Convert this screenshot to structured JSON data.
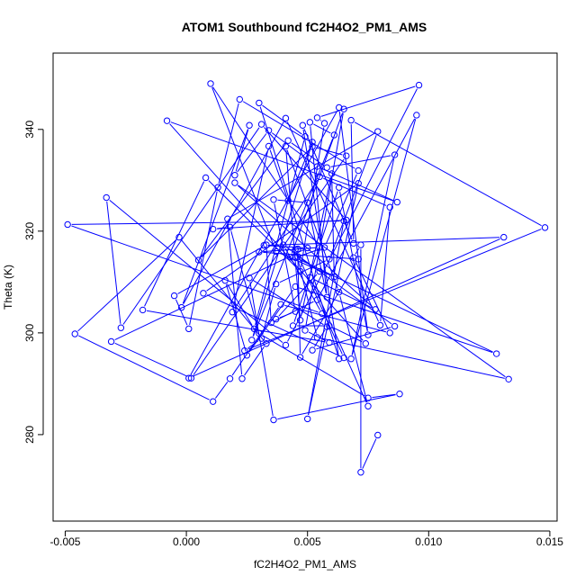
{
  "chart_data": {
    "type": "line",
    "title": "ATOM1 Southbound fC2H4O2_PM1_AMS",
    "xlabel": "fC2H4O2_PM1_AMS",
    "ylabel": "Theta (K)",
    "xlim": [
      -0.0055,
      0.0153
    ],
    "ylim": [
      263,
      355
    ],
    "xticks": [
      -0.005,
      0.0,
      0.005,
      0.01,
      0.015
    ],
    "xtick_labels": [
      "-0.005",
      "0.000",
      "0.005",
      "0.010",
      "0.015"
    ],
    "yticks": [
      280,
      300,
      320,
      340
    ],
    "ytick_labels": [
      "280",
      "300",
      "320",
      "340"
    ],
    "grid": false,
    "legend": "none",
    "markers": "open circles",
    "color": "#0000ff",
    "series": [
      {
        "x": [
          0.0079,
          0.0072,
          0.0072,
          0.0069,
          0.0084,
          0.0039,
          0.0018,
          0.0011,
          -0.0046,
          -0.0003,
          0.0033,
          0.0023,
          0.0017,
          0.0079,
          0.0059,
          0.0037,
          0.0031,
          0.0024,
          0.0148,
          0.0068,
          0.0069,
          0.0048,
          0.0063,
          0.003,
          0.0049,
          0.0028,
          0.0016,
          0.0025,
          0.0045,
          0.0128,
          0.0045,
          0.0057,
          0.0071,
          0.0022,
          0.0013,
          0.0001,
          -0.0005,
          0.0033,
          0.0035,
          0.0054,
          0.0095,
          0.0068,
          0.0086,
          0.0058,
          0.0042,
          0.0005,
          0.0052,
          0.0066,
          0.0002,
          -0.0031,
          0.005,
          0.0032,
          0.0131,
          0.0001,
          0.0063,
          0.0075,
          0.0063,
          0.0044,
          0.0059,
          0.0074,
          -0.0008,
          0.0087,
          0.0054,
          0.0034,
          0.002,
          0.0026,
          -0.0002,
          0.0041,
          0.008,
          0.0084,
          0.0055,
          0.0019,
          0.0034,
          0.0042,
          0.0052,
          0.0027,
          0.0061,
          0.0051,
          0.0058,
          0.005,
          0.0036,
          0.0045,
          0.0037,
          0.0055,
          0.0046,
          0.0047,
          0.0071,
          0.003,
          0.0055,
          0.001,
          0.0037,
          0.0061,
          0.006,
          0.0047,
          0.0041,
          0.0063,
          0.0075,
          0.0051,
          0.0078,
          0.002,
          0.0133,
          0.0054,
          0.0045,
          0.0065,
          0.0007,
          0.0071,
          0.005,
          0.0065,
          -0.0049,
          0.0056,
          0.004,
          0.0086,
          0.0052,
          0.0058,
          0.0026,
          0.0036,
          0.0088,
          0.0075,
          0.003,
          0.0018,
          0.0011,
          0.0066,
          0.0031,
          -0.0027,
          -0.0033,
          0.0041,
          0.0096,
          0.0054,
          0.0057,
          0.0047,
          0.0008,
          -0.0018,
          0.0059,
          0.0049,
          0.0065,
          0.0043,
          0.0046
        ],
        "y": [
          279.9,
          272.6,
          317.3,
          314.8,
          300.0,
          305.6,
          291.0,
          286.5,
          299.8,
          318.8,
          297.9,
          291.0,
          322.4,
          339.6,
          314.5,
          309.6,
          298.9,
          296.5,
          320.7,
          341.8,
          317.6,
          340.8,
          294.9,
          345.2,
          338.6,
          300.8,
          310.3,
          295.6,
          309.1,
          295.9,
          314.8,
          316.8,
          331.9,
          345.9,
          328.6,
          300.8,
          307.3,
          317.3,
          302.0,
          306.5,
          342.8,
          294.9,
          335.0,
          332.5,
          337.8,
          314.3,
          336.6,
          334.8,
          291.1,
          298.3,
          316.7,
          317.2,
          318.8,
          291.1,
          344.3,
          299.6,
          328.6,
          301.4,
          301.4,
          297.9,
          341.7,
          325.7,
          332.7,
          339.8,
          331.0,
          340.8,
          305.0,
          342.2,
          301.5,
          324.7,
          330.7,
          304.1,
          336.7,
          326.0,
          337.5,
          298.6,
          338.9,
          341.4,
          307.0,
          325.6,
          326.2,
          304.2,
          302.7,
          312.1,
          315.0,
          295.2,
          314.5,
          315.9,
          316.8,
          349.0,
          316.0,
          311.0,
          331.3,
          302.5,
          336.7,
          308.0,
          285.6,
          310.9,
          304.6,
          329.5,
          290.9,
          299.1,
          316.4,
          295.1,
          307.8,
          329.4,
          283.1,
          322.0,
          321.3,
          303.8,
          317.3,
          301.3,
          296.6,
          301.2,
          310.8,
          282.9,
          288.0,
          287.2,
          299.9,
          320.8,
          320.4,
          322.2,
          341.0,
          301.0,
          326.6,
          297.6,
          348.7,
          342.3,
          341.2,
          312.1,
          330.5,
          304.5,
          298.1,
          300.5,
          344.0,
          314.9,
          316.5
        ]
      }
    ]
  }
}
